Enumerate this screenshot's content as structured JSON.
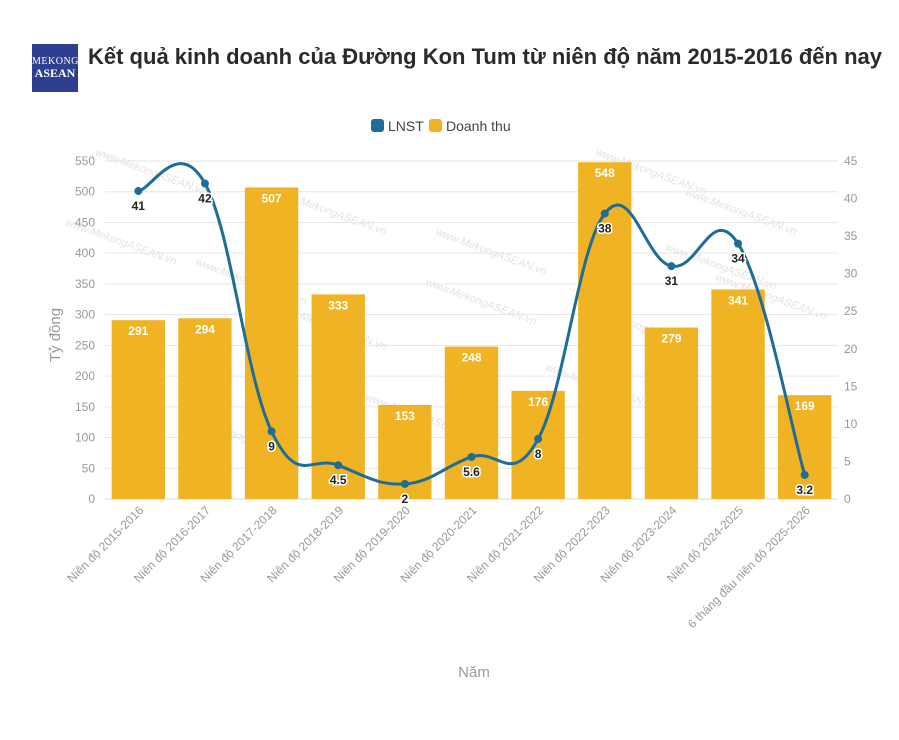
{
  "logo": {
    "line1": "MEKONG",
    "line2": "ASEAN"
  },
  "title": "Kết quả kinh doanh của Đường Kon Tum từ niên độ năm 2015-2016 đến nay",
  "watermark": "www.MekongASEAN.vn",
  "colors": {
    "bar": "#F0B323",
    "line": "#1F6C96",
    "grid": "#e6e6e6"
  },
  "chart_data": {
    "type": "bar",
    "categories": [
      "Niên độ 2015-2016",
      "Niên độ 2016-2017",
      "Niên độ 2017-2018",
      "Niên độ 2018-2019",
      "Niên độ 2019-2020",
      "Niên độ 2020-2021",
      "Niên độ 2021-2022",
      "Niên độ 2022-2023",
      "Niên độ 2023-2024",
      "Niên độ 2024-2025",
      "6 tháng đầu niên độ 2025-2026"
    ],
    "series": [
      {
        "name": "Doanh thu",
        "type": "bar",
        "axis": "left",
        "values": [
          291,
          294,
          507,
          333,
          153,
          248,
          176,
          548,
          279,
          341,
          169
        ]
      },
      {
        "name": "LNST",
        "type": "line",
        "axis": "right",
        "values": [
          41,
          42,
          9,
          4.5,
          2,
          5.6,
          8,
          38,
          31,
          34,
          3.2
        ]
      }
    ],
    "line_labels": [
      "41",
      "42",
      "9",
      "4.5",
      "2",
      "5.6",
      "8",
      "38",
      "31",
      "34",
      "3.2"
    ],
    "legend": [
      "LNST",
      "Doanh thu"
    ],
    "xlabel": "Năm",
    "ylabel": "Tỷ đồng",
    "ylim": [
      0,
      550
    ],
    "y_ticks": [
      0,
      50,
      100,
      150,
      200,
      250,
      300,
      350,
      400,
      450,
      500,
      550
    ],
    "y2lim": [
      0,
      45
    ],
    "y2_ticks": [
      0,
      5,
      10,
      15,
      20,
      25,
      30,
      35,
      40,
      45
    ],
    "legend_position": "top-center",
    "grid": true
  }
}
